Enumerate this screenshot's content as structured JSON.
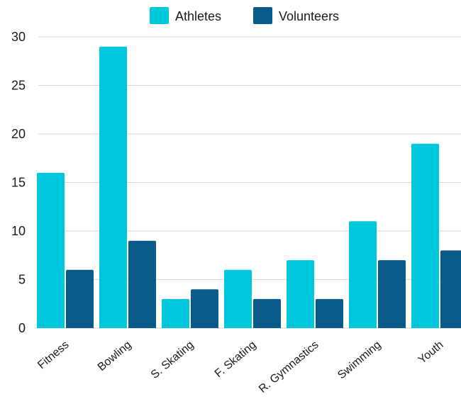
{
  "chart_data": {
    "type": "bar",
    "categories": [
      "Fitness",
      "Bowling",
      "S. Skating",
      "F. Skating",
      "R. Gymnastics",
      "Swimming",
      "Youth"
    ],
    "series": [
      {
        "name": "Athletes",
        "values": [
          16,
          29,
          3,
          6,
          7,
          11,
          19
        ],
        "color": "#00c8dc"
      },
      {
        "name": "Volunteers",
        "values": [
          6,
          9,
          4,
          3,
          3,
          7,
          8
        ],
        "color": "#0a5a8a"
      }
    ],
    "title": "",
    "xlabel": "",
    "ylabel": "",
    "ylim": [
      0,
      30
    ],
    "yticks": [
      0,
      5,
      10,
      15,
      20,
      25,
      30
    ],
    "grid": true,
    "legend": "top-center"
  }
}
